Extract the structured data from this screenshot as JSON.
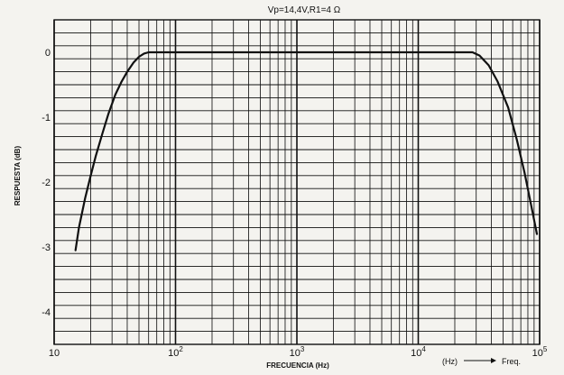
{
  "chart_data": {
    "type": "line",
    "title": "Vp=14,4V,R1=4 Ω",
    "xlabel": "FRECUENCIA (Hz)",
    "ylabel": "RESPUESTA (dB)",
    "x_scale": "log",
    "xlim": [
      10,
      100000
    ],
    "ylim": [
      -4.5,
      0.5
    ],
    "grid": true,
    "x_ticks": [
      {
        "value": 10,
        "label": "10"
      },
      {
        "value": 100,
        "label": "10",
        "exp": "2"
      },
      {
        "value": 1000,
        "label": "10",
        "exp": "3"
      },
      {
        "value": 10000,
        "label": "10",
        "exp": "4"
      },
      {
        "value": 100000,
        "label": "10",
        "exp": "5"
      }
    ],
    "y_ticks": [
      {
        "value": 0,
        "label": "0"
      },
      {
        "value": -1,
        "label": "-1"
      },
      {
        "value": -2,
        "label": "-2"
      },
      {
        "value": -3,
        "label": "-3"
      },
      {
        "value": -4,
        "label": "-4"
      }
    ],
    "annotation": {
      "hz": "(Hz)",
      "freq": "Freq."
    },
    "series": [
      {
        "x": [
          15,
          16,
          18,
          20,
          22,
          25,
          28,
          32,
          36,
          40,
          45,
          50,
          55,
          60,
          65,
          1000,
          28000,
          32000,
          38000,
          45000,
          55000,
          65000,
          75000,
          85000,
          95000
        ],
        "y": [
          -3.05,
          -2.7,
          -2.25,
          -1.9,
          -1.6,
          -1.25,
          -0.95,
          -0.65,
          -0.45,
          -0.3,
          -0.16,
          -0.07,
          -0.02,
          0,
          0,
          0,
          0,
          -0.05,
          -0.2,
          -0.45,
          -0.85,
          -1.35,
          -1.85,
          -2.35,
          -2.8
        ]
      }
    ]
  }
}
